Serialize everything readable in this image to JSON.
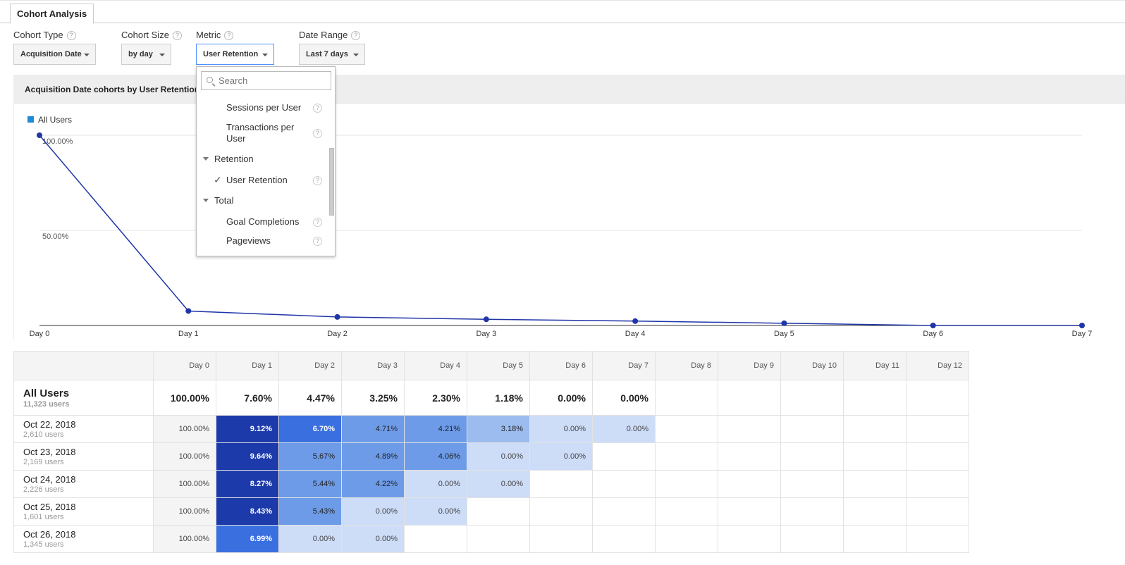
{
  "tab": {
    "label": "Cohort Analysis"
  },
  "controls": {
    "cohort_type": {
      "label": "Cohort Type",
      "value": "Acquisition Date"
    },
    "cohort_size": {
      "label": "Cohort Size",
      "value": "by day"
    },
    "metric": {
      "label": "Metric",
      "value": "User Retention"
    },
    "date_range": {
      "label": "Date Range",
      "value": "Last 7 days"
    },
    "help": "?"
  },
  "menu": {
    "search_placeholder": "Search",
    "items": {
      "sessions_per_user": "Sessions per User",
      "transactions_per_user": "Transactions per User",
      "retention_group": "Retention",
      "user_retention": "User Retention",
      "total_group": "Total",
      "goal_completions": "Goal Completions",
      "pageviews": "Pageviews"
    },
    "check": "✓"
  },
  "chart_title": "Acquisition Date cohorts by User Retention",
  "chart_data": {
    "type": "line",
    "categories": [
      "Day 0",
      "Day 1",
      "Day 2",
      "Day 3",
      "Day 4",
      "Day 5",
      "Day 6",
      "Day 7"
    ],
    "series": [
      {
        "name": "All Users",
        "values": [
          100,
          7.6,
          4.47,
          3.25,
          2.3,
          1.18,
          0,
          0
        ],
        "color": "#1f35a8"
      }
    ],
    "y_ticks": [
      "100.00%",
      "50.00%"
    ],
    "ylim": [
      0,
      100
    ],
    "legend_color": "#1f8ad6",
    "grid": true
  },
  "table": {
    "headers": [
      "Day 0",
      "Day 1",
      "Day 2",
      "Day 3",
      "Day 4",
      "Day 5",
      "Day 6",
      "Day 7",
      "Day 8",
      "Day 9",
      "Day 10",
      "Day 11",
      "Day 12"
    ],
    "total": {
      "label": "All Users",
      "sub": "11,323 users",
      "values": [
        "100.00%",
        "7.60%",
        "4.47%",
        "3.25%",
        "2.30%",
        "1.18%",
        "0.00%",
        "0.00%"
      ]
    },
    "rows": [
      {
        "label": "Oct 22, 2018",
        "sub": "2,610 users",
        "values": [
          "100.00%",
          "9.12%",
          "6.70%",
          "4.71%",
          "4.21%",
          "3.18%",
          "0.00%",
          "0.00%"
        ]
      },
      {
        "label": "Oct 23, 2018",
        "sub": "2,169 users",
        "values": [
          "100.00%",
          "9.64%",
          "5.67%",
          "4.89%",
          "4.06%",
          "0.00%",
          "0.00%"
        ]
      },
      {
        "label": "Oct 24, 2018",
        "sub": "2,226 users",
        "values": [
          "100.00%",
          "8.27%",
          "5.44%",
          "4.22%",
          "0.00%",
          "0.00%"
        ]
      },
      {
        "label": "Oct 25, 2018",
        "sub": "1,601 users",
        "values": [
          "100.00%",
          "8.43%",
          "5.43%",
          "0.00%",
          "0.00%"
        ]
      },
      {
        "label": "Oct 26, 2018",
        "sub": "1,345 users",
        "values": [
          "100.00%",
          "6.99%",
          "0.00%",
          "0.00%"
        ]
      }
    ],
    "heat_colors": {
      "darkest": "#1c3aa9",
      "dark": "#3a6fe0",
      "mid": "#6d9be8",
      "light": "#9cbcf0",
      "lightest": "#cddcf7"
    }
  }
}
